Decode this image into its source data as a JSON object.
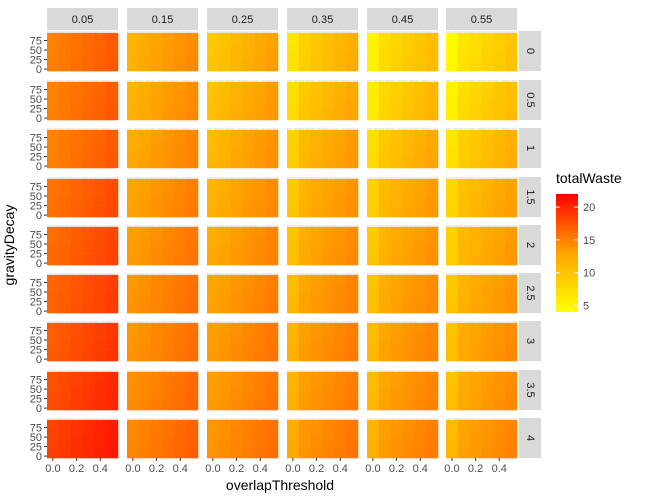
{
  "chart_data": {
    "type": "heatmap",
    "facet_cols": {
      "values": [
        "0.05",
        "0.15",
        "0.25",
        "0.35",
        "0.45",
        "0.55"
      ]
    },
    "facet_rows": {
      "values": [
        "0",
        "0.5",
        "1",
        "1.5",
        "2",
        "2.5",
        "3",
        "3.5",
        "4"
      ]
    },
    "xlabel": "overlapThreshold",
    "ylabel": "gravityDecay",
    "x_ticks": [
      "0.0",
      "0.2",
      "0.4"
    ],
    "y_ticks": [
      "0",
      "25",
      "50",
      "75"
    ],
    "xlim": [
      -0.05,
      0.55
    ],
    "ylim": [
      -5,
      100
    ],
    "x_cells": [
      0.0,
      0.1,
      0.2,
      0.3,
      0.4,
      0.5
    ],
    "y_cells": [
      0,
      10,
      20,
      30,
      40,
      50,
      60,
      70,
      80,
      90
    ],
    "legend": {
      "title": "totalWaste",
      "placement": "right",
      "ticks": [
        "5",
        "10",
        "15",
        "20"
      ],
      "tick_values": [
        5,
        10,
        15,
        20
      ],
      "range": [
        4,
        22
      ]
    },
    "color_low": "#ffff00",
    "color_high": "#ff0000",
    "grid": true,
    "panel_background": "#ebebeb",
    "strip_background": "#d9d9d9",
    "panel_means": [
      [
        14.5,
        11.0,
        9.5,
        8.5,
        7.5,
        7.0
      ],
      [
        14.5,
        11.0,
        10.0,
        9.0,
        8.0,
        7.5
      ],
      [
        14.5,
        11.5,
        10.5,
        10.0,
        9.0,
        8.5
      ],
      [
        15.5,
        12.0,
        11.0,
        10.5,
        10.0,
        9.5
      ],
      [
        16.0,
        12.5,
        11.5,
        11.0,
        10.5,
        10.0
      ],
      [
        16.5,
        13.0,
        12.0,
        11.5,
        11.0,
        10.5
      ],
      [
        17.0,
        13.0,
        12.5,
        12.0,
        11.5,
        11.0
      ],
      [
        18.0,
        13.5,
        12.5,
        12.0,
        11.5,
        11.0
      ],
      [
        19.0,
        14.0,
        13.0,
        12.5,
        12.0,
        11.5
      ]
    ]
  }
}
